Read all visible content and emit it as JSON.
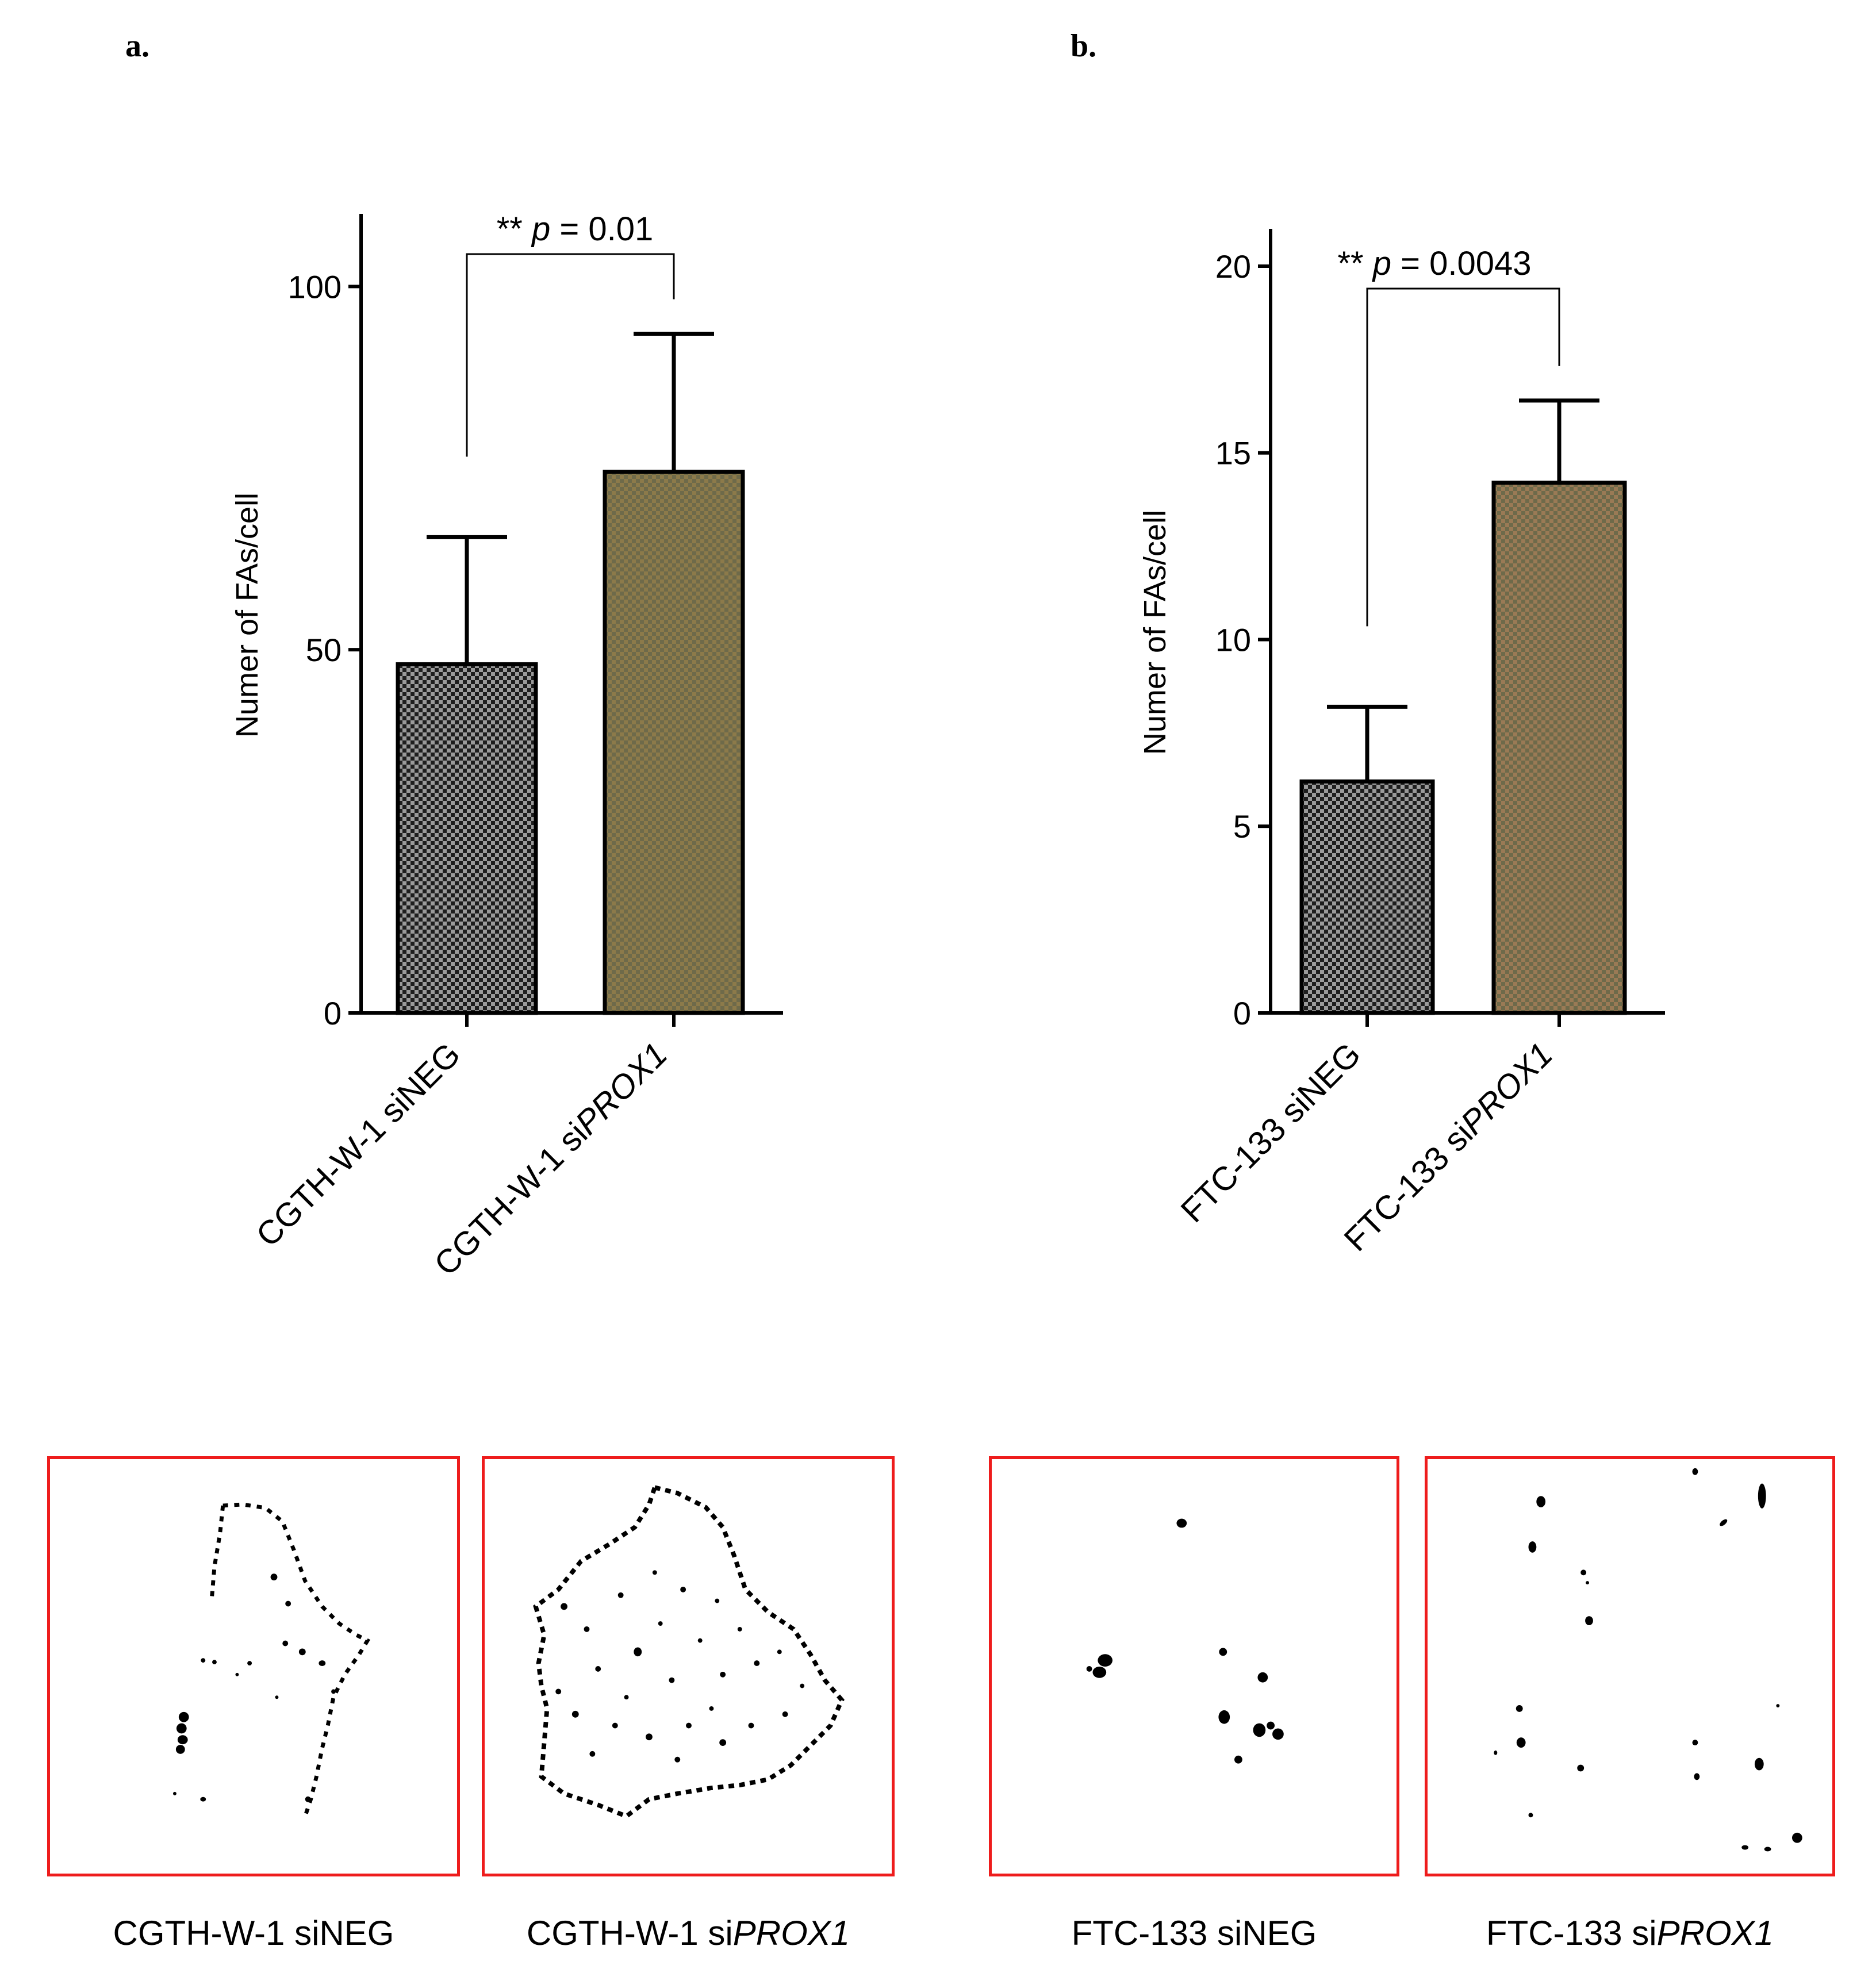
{
  "panels": {
    "a": "a.",
    "b": "b."
  },
  "chart_data": [
    {
      "type": "bar",
      "ylabel": "Numer of FAs/cell",
      "ylim": [
        0,
        110
      ],
      "yticks": [
        0,
        50,
        100
      ],
      "categories": [
        "CGTH-W-1 siNEG",
        "CGTH-W-1 siPROX1"
      ],
      "values": [
        48,
        74.5
      ],
      "error_upper": [
        65.5,
        93.5
      ],
      "bar_colors": [
        "#4a4a4a",
        "#8c7a4a"
      ],
      "significance": {
        "stars": "**",
        "p_symbol": "p",
        "p_text": "= 0.01"
      }
    },
    {
      "type": "bar",
      "ylabel": "Numer of FAs/cell",
      "ylim": [
        0,
        21
      ],
      "yticks": [
        0,
        5,
        10,
        15,
        20
      ],
      "categories": [
        "FTC-133 siNEG",
        "FTC-133 siPROX1"
      ],
      "values": [
        6.2,
        14.2
      ],
      "error_upper": [
        8.2,
        16.4
      ],
      "bar_colors": [
        "#4a4a4a",
        "#9a7a55"
      ],
      "significance": {
        "stars": "**",
        "p_symbol": "p",
        "p_text": "= 0.0043"
      }
    }
  ],
  "images": [
    {
      "caption_prefix": "CGTH-W-1 si",
      "caption_italic": "NEG",
      "italic": false
    },
    {
      "caption_prefix": "CGTH-W-1 si",
      "caption_italic": "PROX1",
      "italic": true
    },
    {
      "caption_prefix": "FTC-133 si",
      "caption_italic": "NEG",
      "italic": false
    },
    {
      "caption_prefix": "FTC-133 si",
      "caption_italic": "PROX1",
      "italic": true
    }
  ],
  "colors": {
    "frame": "#ee1c1c",
    "axis": "#000000"
  }
}
